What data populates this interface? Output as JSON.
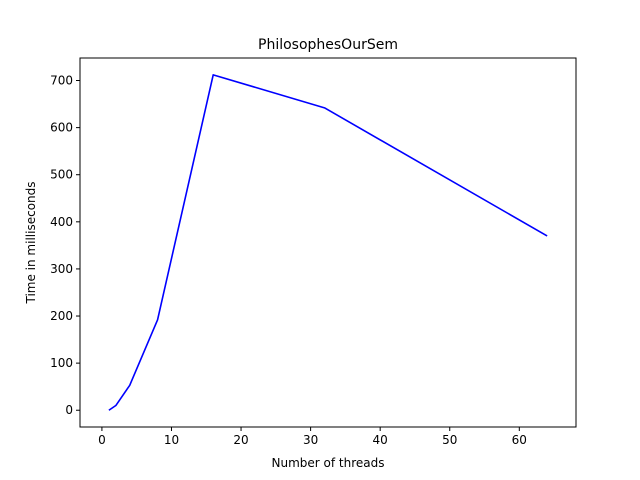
{
  "chart_data": {
    "type": "line",
    "title": "PhilosophesOurSem",
    "xlabel": "Number of threads",
    "ylabel": "Time in milliseconds",
    "xlim": [
      -3.15,
      68.15
    ],
    "ylim": [
      -35.6,
      747.8
    ],
    "xticks": [
      0,
      10,
      20,
      30,
      40,
      50,
      60
    ],
    "yticks": [
      0,
      100,
      200,
      300,
      400,
      500,
      600,
      700
    ],
    "grid": false,
    "series": [
      {
        "color": "#0000ff",
        "x": [
          1,
          2,
          4,
          8,
          16,
          32,
          64
        ],
        "y": [
          0,
          10,
          53,
          192,
          712,
          642,
          370
        ]
      }
    ]
  }
}
